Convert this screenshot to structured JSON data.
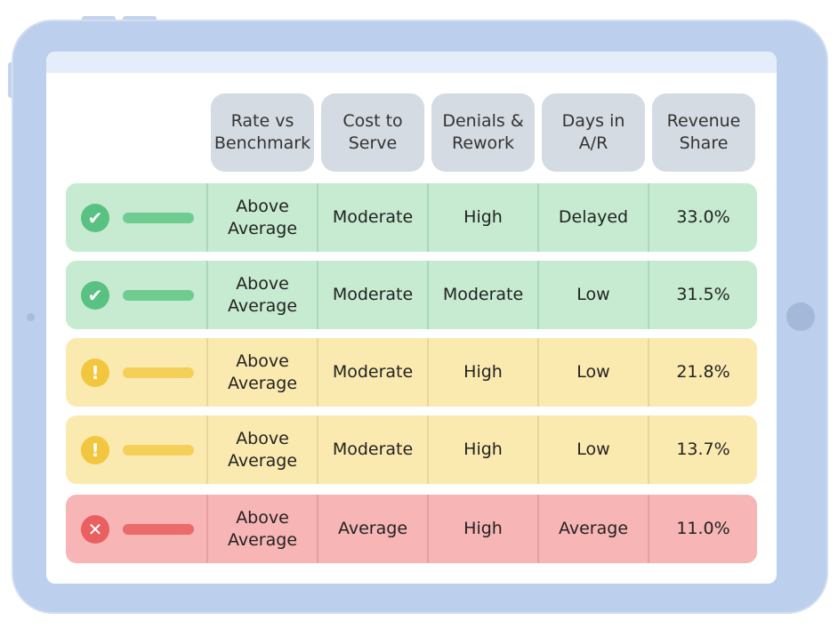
{
  "table": {
    "headers": [
      [
        "Rate vs",
        "Benchmark"
      ],
      [
        "Cost to",
        "Serve"
      ],
      [
        "Denials &",
        "Rework"
      ],
      [
        "Days in",
        "A/R"
      ],
      [
        "Revenue",
        "Share"
      ]
    ],
    "rows": [
      {
        "status": "success",
        "icon": "check-circle-icon",
        "glyph": "✔",
        "color": "#59c182",
        "rate": [
          "Above",
          "Average"
        ],
        "cost": "Moderate",
        "denials": "High",
        "days": "Delayed",
        "share": "33.0%"
      },
      {
        "status": "success",
        "icon": "check-circle-icon",
        "glyph": "✔",
        "color": "#59c182",
        "rate": [
          "Above",
          "Average"
        ],
        "cost": "Moderate",
        "denials": "Moderate",
        "days": "Low",
        "share": "31.5%"
      },
      {
        "status": "warning",
        "icon": "exclamation-circle-icon",
        "glyph": "!",
        "color": "#f3c63f",
        "rate": [
          "Above",
          "Average"
        ],
        "cost": "Moderate",
        "denials": "High",
        "days": "Low",
        "share": "21.8%"
      },
      {
        "status": "warning",
        "icon": "exclamation-circle-icon",
        "glyph": "!",
        "color": "#f3c63f",
        "rate": [
          "Above",
          "Average"
        ],
        "cost": "Moderate",
        "denials": "High",
        "days": "Low",
        "share": "13.7%"
      },
      {
        "status": "error",
        "icon": "x-circle-icon",
        "glyph": "✕",
        "color": "#ea5f5f",
        "rate": [
          "Above",
          "Average"
        ],
        "cost": "Average",
        "denials": "High",
        "days": "Average",
        "share": "11.0%"
      }
    ]
  }
}
